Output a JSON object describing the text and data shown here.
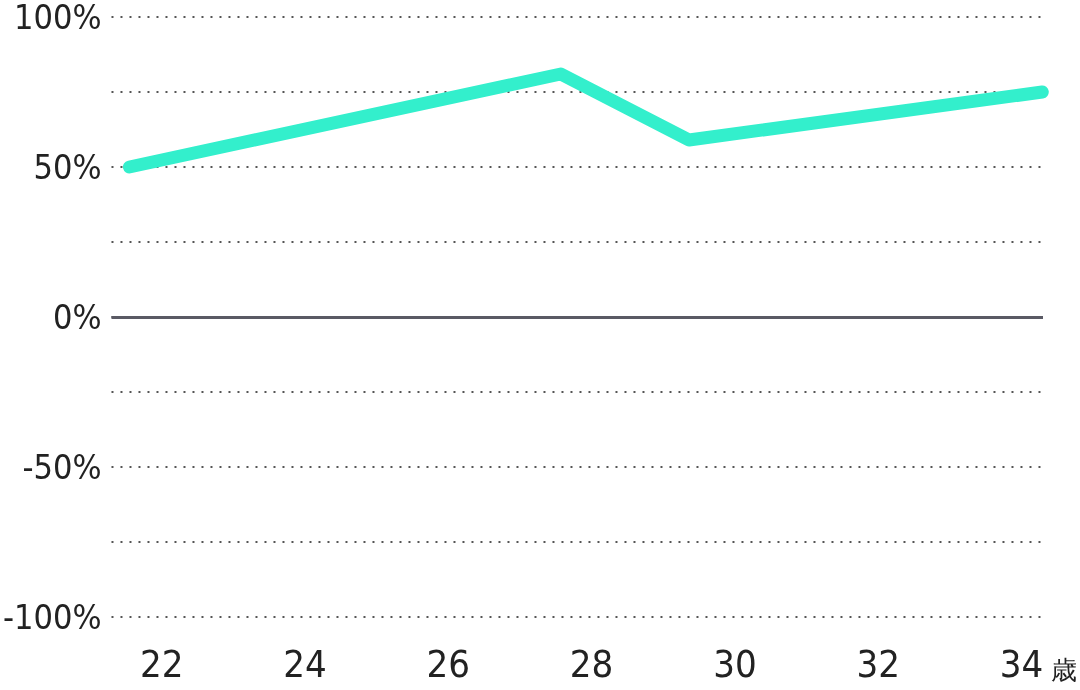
{
  "chart_data": {
    "type": "line",
    "xlabel": "歳",
    "x": [
      21.55,
      27.57,
      29.36,
      34.29
    ],
    "series": [
      {
        "color": "#33efcc",
        "values": [
          50,
          81,
          59,
          75
        ]
      }
    ],
    "xlim": [
      21.3,
      34.3
    ],
    "xticks": [
      22,
      24,
      26,
      28,
      30,
      32,
      34
    ],
    "ylim": [
      -100,
      100
    ],
    "yticks": [
      {
        "value": -100,
        "label": "-100%"
      },
      {
        "value": -75,
        "label": null
      },
      {
        "value": -50,
        "label": "-50%"
      },
      {
        "value": -25,
        "label": null
      },
      {
        "value": 0,
        "label": "0%"
      },
      {
        "value": 25,
        "label": null
      },
      {
        "value": 50,
        "label": "50%"
      },
      {
        "value": 75,
        "label": null
      },
      {
        "value": 100,
        "label": "100%"
      }
    ],
    "ref_lines": [
      {
        "axis": "y",
        "value": 0,
        "color": "#5a5a64"
      }
    ],
    "grid": "y",
    "line_style": "solid"
  }
}
